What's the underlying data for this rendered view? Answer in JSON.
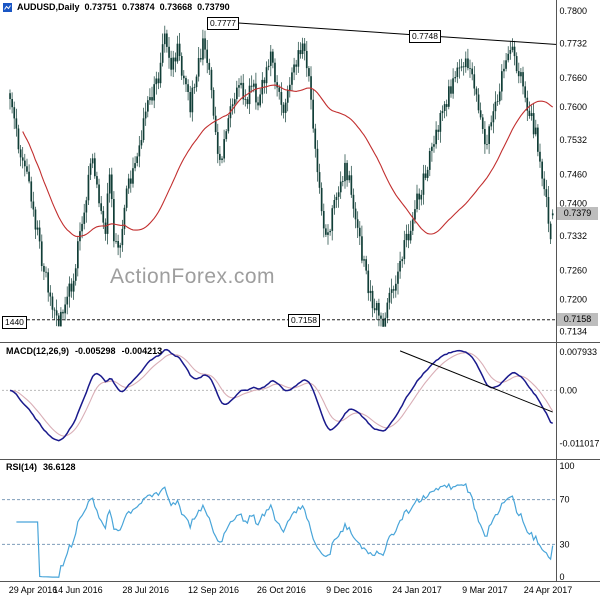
{
  "header": {
    "symbol": "AUDUSD,Daily",
    "open": "0.73751",
    "high": "0.73874",
    "low": "0.73668",
    "close": "0.73790"
  },
  "watermark": "ActionForex.com",
  "annotations": {
    "resistance_high": "0.7777",
    "resistance_feb": "0.7748",
    "support": "0.7158",
    "support_left": "1440"
  },
  "badges": {
    "current_price": "0.7379",
    "support_level": "0.7158"
  },
  "indicators": {
    "macd": {
      "label": "MACD(12,26,9)",
      "value_macd": "-0.005298",
      "value_signal": "-0.004213"
    },
    "rsi": {
      "label": "RSI(14)",
      "value": "36.6128"
    }
  },
  "colors": {
    "background": "#ffffff",
    "candle": "#113e37",
    "ma_line": "#c22f2f",
    "trendline": "#000000",
    "support_line": "#222222",
    "macd_line": "#1a1a8c",
    "macd_signal": "#d9aeb6",
    "macd_trendline": "#000000",
    "rsi_line": "#49a5d9",
    "rsi_levels": "#7f9db9",
    "axis_text": "#000000",
    "separator": "#555555",
    "badge_bg": "#bdbdbd",
    "watermark": "#9e9e9e",
    "zero_line": "#bbbbbb",
    "title_icon": "#1a56c4"
  },
  "chart_data": [
    {
      "type": "candlestick",
      "title": "AUDUSD Daily",
      "bars_total": 257,
      "x_axis_dates": [
        {
          "label": "29 Apr 2016",
          "bar": 0
        },
        {
          "label": "14 Jun 2016",
          "bar": 32
        },
        {
          "label": "28 Jul 2016",
          "bar": 64
        },
        {
          "label": "12 Sep 2016",
          "bar": 96
        },
        {
          "label": "26 Oct 2016",
          "bar": 128
        },
        {
          "label": "9 Dec 2016",
          "bar": 160
        },
        {
          "label": "24 Jan 2017",
          "bar": 192
        },
        {
          "label": "9 Mar 2017",
          "bar": 224
        },
        {
          "label": "24 Apr 2017",
          "bar": 256
        }
      ],
      "y_range": [
        0.712,
        0.781
      ],
      "y_ticks": [
        {
          "label": "0.7800",
          "value": 0.78
        },
        {
          "label": "0.7732",
          "value": 0.7732
        },
        {
          "label": "0.7660",
          "value": 0.766
        },
        {
          "label": "0.7600",
          "value": 0.76
        },
        {
          "label": "0.7532",
          "value": 0.7532
        },
        {
          "label": "0.7460",
          "value": 0.746
        },
        {
          "label": "0.7400",
          "value": 0.74
        },
        {
          "label": "0.7332",
          "value": 0.7332
        },
        {
          "label": "0.7260",
          "value": 0.726
        },
        {
          "label": "0.7200",
          "value": 0.72
        },
        {
          "label": "0.7134",
          "value": 0.7134
        }
      ],
      "current_ohlc": [
        0.73751,
        0.73874,
        0.73668,
        0.7379
      ],
      "moving_average": {
        "type": "SMA",
        "period": 55
      },
      "trendline": {
        "from_bar": 100,
        "from_price": 0.7777,
        "to_bar": 258,
        "to_price": 0.773
      },
      "support_line": {
        "price": 0.7158,
        "style": "dashed"
      },
      "close_anchors": [
        [
          0,
          0.7615
        ],
        [
          4,
          0.752
        ],
        [
          8,
          0.7455
        ],
        [
          12,
          0.736
        ],
        [
          16,
          0.726
        ],
        [
          20,
          0.7195
        ],
        [
          23,
          0.715
        ],
        [
          26,
          0.7195
        ],
        [
          30,
          0.7245
        ],
        [
          33,
          0.734
        ],
        [
          36,
          0.742
        ],
        [
          39,
          0.749
        ],
        [
          42,
          0.741
        ],
        [
          45,
          0.735
        ],
        [
          47,
          0.747
        ],
        [
          49,
          0.733
        ],
        [
          52,
          0.73
        ],
        [
          55,
          0.743
        ],
        [
          58,
          0.747
        ],
        [
          61,
          0.752
        ],
        [
          64,
          0.758
        ],
        [
          67,
          0.763
        ],
        [
          70,
          0.766
        ],
        [
          73,
          0.7745
        ],
        [
          76,
          0.7685
        ],
        [
          79,
          0.772
        ],
        [
          82,
          0.765
        ],
        [
          85,
          0.7605
        ],
        [
          88,
          0.768
        ],
        [
          91,
          0.7725
        ],
        [
          94,
          0.769
        ],
        [
          96,
          0.7565
        ],
        [
          99,
          0.748
        ],
        [
          102,
          0.7545
        ],
        [
          105,
          0.7605
        ],
        [
          108,
          0.765
        ],
        [
          111,
          0.7605
        ],
        [
          114,
          0.7645
        ],
        [
          117,
          0.7615
        ],
        [
          120,
          0.766
        ],
        [
          123,
          0.7705
        ],
        [
          126,
          0.7625
        ],
        [
          129,
          0.7595
        ],
        [
          132,
          0.765
        ],
        [
          135,
          0.77
        ],
        [
          138,
          0.7725
        ],
        [
          140,
          0.769
        ],
        [
          143,
          0.756
        ],
        [
          146,
          0.743
        ],
        [
          149,
          0.733
        ],
        [
          152,
          0.7375
        ],
        [
          155,
          0.742
        ],
        [
          158,
          0.7475
        ],
        [
          161,
          0.743
        ],
        [
          164,
          0.734
        ],
        [
          167,
          0.727
        ],
        [
          170,
          0.7205
        ],
        [
          173,
          0.7175
        ],
        [
          176,
          0.716
        ],
        [
          179,
          0.7205
        ],
        [
          182,
          0.7235
        ],
        [
          185,
          0.729
        ],
        [
          188,
          0.734
        ],
        [
          191,
          0.739
        ],
        [
          194,
          0.7435
        ],
        [
          197,
          0.7485
        ],
        [
          200,
          0.753
        ],
        [
          203,
          0.757
        ],
        [
          206,
          0.7615
        ],
        [
          209,
          0.765
        ],
        [
          212,
          0.768
        ],
        [
          215,
          0.7705
        ],
        [
          218,
          0.7665
        ],
        [
          221,
          0.76
        ],
        [
          224,
          0.7515
        ],
        [
          227,
          0.756
        ],
        [
          230,
          0.7615
        ],
        [
          233,
          0.768
        ],
        [
          236,
          0.773
        ],
        [
          239,
          0.769
        ],
        [
          242,
          0.7645
        ],
        [
          245,
          0.759
        ],
        [
          248,
          0.754
        ],
        [
          250,
          0.7485
        ],
        [
          252,
          0.7425
        ],
        [
          254,
          0.737
        ],
        [
          255,
          0.7335
        ],
        [
          256,
          0.7379
        ]
      ]
    },
    {
      "type": "line",
      "name": "MACD",
      "params": [
        12,
        26,
        9
      ],
      "current": {
        "macd": -0.005298,
        "signal": -0.004213
      },
      "y_range": [
        -0.0128,
        0.0088
      ],
      "y_ticks": [
        {
          "label": "0.007933",
          "value": 0.007933
        },
        {
          "label": "0.00",
          "value": 0
        },
        {
          "label": "-0.011017",
          "value": -0.011017
        }
      ],
      "derived_from": "price_closes",
      "trendline": {
        "from_bar": 184,
        "from_value": 0.0082,
        "to_bar": 256,
        "to_value": -0.0045
      }
    },
    {
      "type": "line",
      "name": "RSI",
      "period": 14,
      "current": 36.6128,
      "y_range": [
        0,
        100
      ],
      "y_ticks": [
        {
          "label": "100",
          "value": 100
        },
        {
          "label": "70",
          "value": 70
        },
        {
          "label": "30",
          "value": 30
        },
        {
          "label": "0",
          "value": 0
        }
      ],
      "levels": [
        70,
        30
      ]
    }
  ]
}
